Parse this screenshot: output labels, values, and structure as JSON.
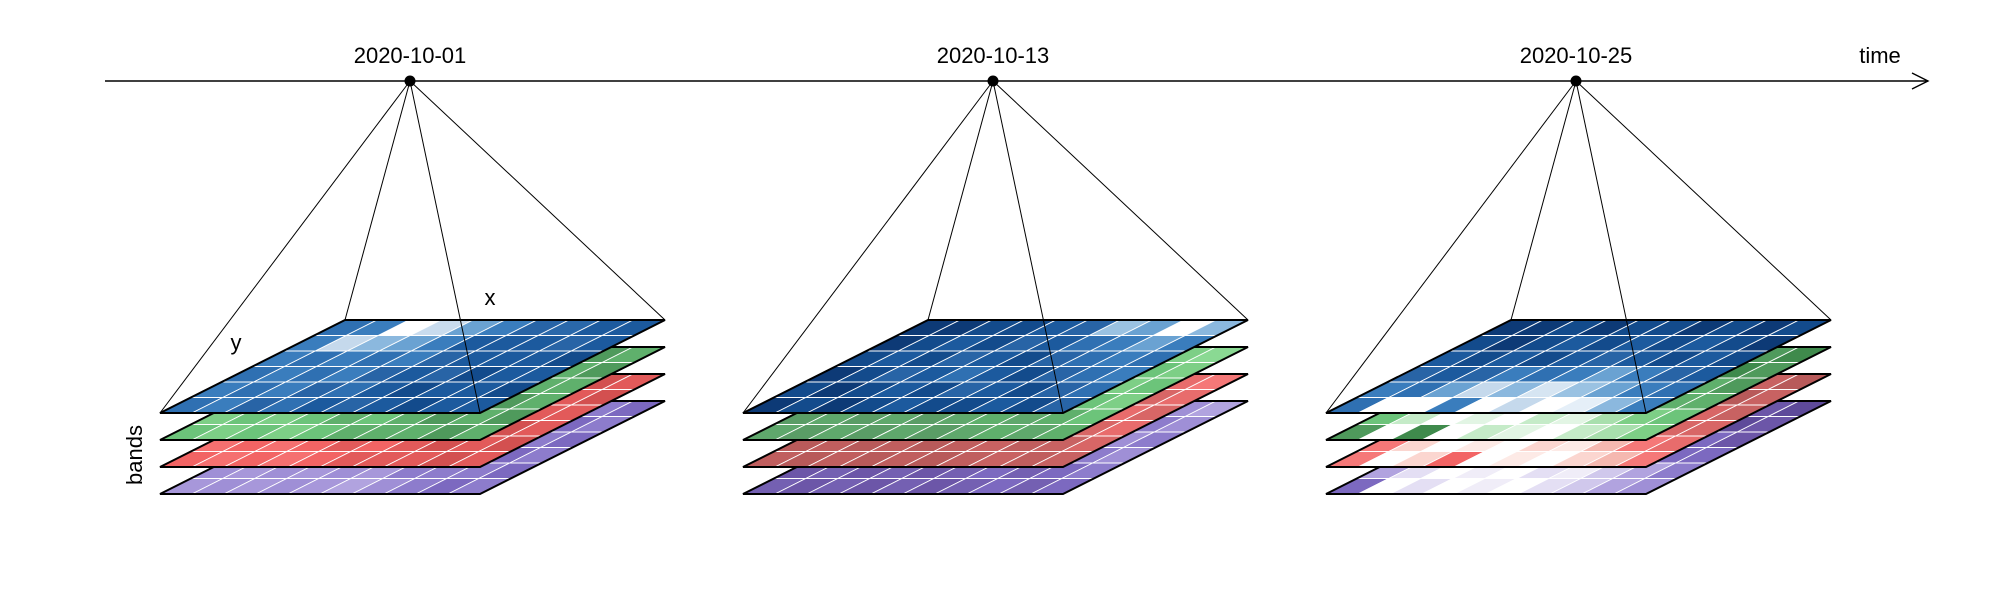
{
  "axis": {
    "label": "time"
  },
  "dimension_labels": {
    "x": "x",
    "y": "y",
    "bands": "bands"
  },
  "colors": {
    "line": "#000000",
    "grid": "#ffffff"
  },
  "timesteps": [
    {
      "date": "2020-10-01",
      "layers": [
        {
          "band": "blue",
          "cells": [
            "#2f70b2",
            "#3a7dbd",
            "#ffffff",
            "#c9dcee",
            "#6aa2d2",
            "#3a7dbd",
            "#2864a6",
            "#2a68aa",
            "#1c5a9e",
            "#1c5a9e",
            "#3a7dbd",
            "#c5d9ec",
            "#8bb8de",
            "#6aa2d2",
            "#3a7dbd",
            "#1c5a9e",
            "#1c5a9e",
            "#1c5a9e",
            "#2864a6",
            "#1c5a9e",
            "#3a7dbd",
            "#2f70b2",
            "#3a7dbd",
            "#2f70b2",
            "#3a7dbd",
            "#2864a6",
            "#1c5a9e",
            "#1c5a9e",
            "#1c5a9e",
            "#134b8c",
            "#2f70b2",
            "#3a7dbd",
            "#2f70b2",
            "#3a7dbd",
            "#2864a6",
            "#1c5a9e",
            "#2864a6",
            "#134b8c",
            "#1c5a9e",
            "#1c5a9e",
            "#3a7dbd",
            "#2f70b2",
            "#3a7dbd",
            "#2864a6",
            "#2f70b2",
            "#1c5a9e",
            "#134b8c",
            "#1c5a9e",
            "#1c5a9e",
            "#134b8c",
            "#2f70b2",
            "#3a7dbd",
            "#2864a6",
            "#2f70b2",
            "#1c5a9e",
            "#2864a6",
            "#1c5a9e",
            "#134b8c",
            "#1c5a9e",
            "#1c5a9e"
          ]
        },
        {
          "band": "green",
          "cells": [
            "#7dcf86",
            "#6cc47a",
            "#7dcf86",
            "#6cc47a",
            "#7dcf86",
            "#6cc47a",
            "#5fb06c",
            "#5fb06c",
            "#4f9a5c",
            "#5fb06c",
            "#6cc47a",
            "#7dcf86",
            "#6cc47a",
            "#7dcf86",
            "#6cc47a",
            "#5fb06c",
            "#4f9a5c",
            "#5fb06c",
            "#5fb06c",
            "#4f9a5c",
            "#7dcf86",
            "#6cc47a",
            "#7dcf86",
            "#6cc47a",
            "#5fb06c",
            "#6cc47a",
            "#5fb06c",
            "#4f9a5c",
            "#5fb06c",
            "#5fb06c",
            "#6cc47a",
            "#7dcf86",
            "#6cc47a",
            "#7dcf86",
            "#6cc47a",
            "#5fb06c",
            "#5fb06c",
            "#5fb06c",
            "#4f9a5c",
            "#5fb06c",
            "#7dcf86",
            "#6cc47a",
            "#7dcf86",
            "#6cc47a",
            "#5fb06c",
            "#6cc47a",
            "#5fb06c",
            "#4f9a5c",
            "#5fb06c",
            "#4f9a5c",
            "#6cc47a",
            "#7dcf86",
            "#6cc47a",
            "#7dcf86",
            "#6cc47a",
            "#5fb06c",
            "#5fb06c",
            "#5fb06c",
            "#4f9a5c",
            "#5fb06c"
          ]
        },
        {
          "band": "red",
          "cells": [
            "#f57070",
            "#f26464",
            "#f57070",
            "#f26464",
            "#f57070",
            "#f26464",
            "#e25a5a",
            "#e25a5a",
            "#d35050",
            "#e25a5a",
            "#f26464",
            "#f57070",
            "#f26464",
            "#f57070",
            "#f26464",
            "#e25a5a",
            "#d35050",
            "#e25a5a",
            "#e25a5a",
            "#d35050",
            "#f57070",
            "#f26464",
            "#f57070",
            "#f26464",
            "#e25a5a",
            "#f57070",
            "#e25a5a",
            "#d35050",
            "#e25a5a",
            "#e25a5a",
            "#f26464",
            "#f57070",
            "#f26464",
            "#f57070",
            "#f26464",
            "#e25a5a",
            "#e25a5a",
            "#e25a5a",
            "#d35050",
            "#e25a5a",
            "#f57070",
            "#f26464",
            "#f57070",
            "#f26464",
            "#e25a5a",
            "#f26464",
            "#e25a5a",
            "#d35050",
            "#e25a5a",
            "#d35050",
            "#f26464",
            "#f57070",
            "#f26464",
            "#f57070",
            "#f26464",
            "#e25a5a",
            "#e25a5a",
            "#e25a5a",
            "#d35050",
            "#e25a5a"
          ]
        },
        {
          "band": "purple",
          "cells": [
            "#9f8fd6",
            "#a797da",
            "#9f8fd6",
            "#a797da",
            "#9f8fd6",
            "#8d7ccc",
            "#8d7ccc",
            "#7c69c0",
            "#8d7ccc",
            "#7c69c0",
            "#a797da",
            "#9f8fd6",
            "#b1a3df",
            "#9f8fd6",
            "#a797da",
            "#9f8fd6",
            "#8d7ccc",
            "#8d7ccc",
            "#7c69c0",
            "#8d7ccc",
            "#9f8fd6",
            "#a797da",
            "#9f8fd6",
            "#a797da",
            "#9f8fd6",
            "#a797da",
            "#8d7ccc",
            "#7c69c0",
            "#8d7ccc",
            "#7c69c0",
            "#a797da",
            "#9f8fd6",
            "#a797da",
            "#b1a3df",
            "#9f8fd6",
            "#8d7ccc",
            "#9f8fd6",
            "#8d7ccc",
            "#7c69c0",
            "#8d7ccc",
            "#9f8fd6",
            "#a797da",
            "#9f8fd6",
            "#a797da",
            "#9f8fd6",
            "#a797da",
            "#8d7ccc",
            "#8d7ccc",
            "#8d7ccc",
            "#7c69c0",
            "#a797da",
            "#9f8fd6",
            "#a797da",
            "#9f8fd6",
            "#a797da",
            "#b1a3df",
            "#9f8fd6",
            "#8d7ccc",
            "#7c69c0",
            "#8d7ccc"
          ]
        }
      ]
    },
    {
      "date": "2020-10-13",
      "layers": [
        {
          "band": "blue",
          "cells": [
            "#0d3a76",
            "#0d3a76",
            "#134b8c",
            "#134b8c",
            "#1c5a9e",
            "#2864a6",
            "#9ac2e2",
            "#6aa2d2",
            "#ffffff",
            "#8bb8de",
            "#0d3a76",
            "#134b8c",
            "#1c5a9e",
            "#134b8c",
            "#2864a6",
            "#1c5a9e",
            "#2f70b2",
            "#3a7dbd",
            "#6aa2d2",
            "#3a7dbd",
            "#134b8c",
            "#1c5a9e",
            "#134b8c",
            "#2864a6",
            "#1c5a9e",
            "#134b8c",
            "#2864a6",
            "#2f70b2",
            "#3a7dbd",
            "#2f70b2",
            "#0d3a76",
            "#134b8c",
            "#2864a6",
            "#1c5a9e",
            "#2f70b2",
            "#1c5a9e",
            "#134b8c",
            "#2864a6",
            "#2f70b2",
            "#3a7dbd",
            "#134b8c",
            "#0d3a76",
            "#134b8c",
            "#1c5a9e",
            "#134b8c",
            "#2864a6",
            "#1c5a9e",
            "#134b8c",
            "#2864a6",
            "#2f70b2",
            "#0d3a76",
            "#134b8c",
            "#0d3a76",
            "#134b8c",
            "#1c5a9e",
            "#134b8c",
            "#134b8c",
            "#1c5a9e",
            "#134b8c",
            "#2864a6"
          ]
        },
        {
          "band": "green",
          "cells": [
            "#5a9d66",
            "#5fa86c",
            "#5a9d66",
            "#5fa86c",
            "#5fb06c",
            "#6cc47a",
            "#7dcf86",
            "#8ad993",
            "#7dcf86",
            "#8ad993",
            "#5fa86c",
            "#5a9d66",
            "#5fa86c",
            "#5fb06c",
            "#5a9d66",
            "#5fb06c",
            "#6cc47a",
            "#7dcf86",
            "#6cc47a",
            "#7dcf86",
            "#5a9d66",
            "#5fa86c",
            "#5a9d66",
            "#5fa86c",
            "#5fb06c",
            "#5fa86c",
            "#5fb06c",
            "#6cc47a",
            "#7dcf86",
            "#6cc47a",
            "#5fa86c",
            "#5a9d66",
            "#5fa86c",
            "#5a9d66",
            "#5fa86c",
            "#5fb06c",
            "#5fa86c",
            "#5fb06c",
            "#6cc47a",
            "#7dcf86",
            "#5a9d66",
            "#5fa86c",
            "#5a9d66",
            "#5fa86c",
            "#5a9d66",
            "#5fa86c",
            "#5fb06c",
            "#5fa86c",
            "#5fb06c",
            "#6cc47a",
            "#5fa86c",
            "#5a9d66",
            "#5fa86c",
            "#5a9d66",
            "#5fa86c",
            "#5a9d66",
            "#5fa86c",
            "#5fb06c",
            "#5fa86c",
            "#5fb06c"
          ]
        },
        {
          "band": "red",
          "cells": [
            "#b85a5a",
            "#c05e5e",
            "#b85a5a",
            "#c05e5e",
            "#c86262",
            "#d86666",
            "#e86c6c",
            "#f57878",
            "#e86c6c",
            "#f57878",
            "#c05e5e",
            "#b85a5a",
            "#c05e5e",
            "#c86262",
            "#b85a5a",
            "#c86262",
            "#d86666",
            "#e86c6c",
            "#d86666",
            "#e86c6c",
            "#b85a5a",
            "#c05e5e",
            "#b85a5a",
            "#c05e5e",
            "#c86262",
            "#c05e5e",
            "#c86262",
            "#d86666",
            "#e86c6c",
            "#d86666",
            "#c05e5e",
            "#b85a5a",
            "#c05e5e",
            "#b85a5a",
            "#c05e5e",
            "#c86262",
            "#c05e5e",
            "#c86262",
            "#d86666",
            "#e86c6c",
            "#b85a5a",
            "#c05e5e",
            "#b85a5a",
            "#c05e5e",
            "#b85a5a",
            "#c05e5e",
            "#c86262",
            "#c05e5e",
            "#c86262",
            "#d86666",
            "#c05e5e",
            "#b85a5a",
            "#c05e5e",
            "#b85a5a",
            "#c05e5e",
            "#b85a5a",
            "#c05e5e",
            "#c86262",
            "#c05e5e",
            "#c86262"
          ]
        },
        {
          "band": "purple",
          "cells": [
            "#6c56a8",
            "#7460b2",
            "#6c56a8",
            "#7460b2",
            "#7c69c0",
            "#8d7ccc",
            "#9f8fd6",
            "#b1a3df",
            "#9f8fd6",
            "#b1a3df",
            "#7460b2",
            "#6c56a8",
            "#7460b2",
            "#7c69c0",
            "#6c56a8",
            "#7c69c0",
            "#8d7ccc",
            "#9f8fd6",
            "#8d7ccc",
            "#9f8fd6",
            "#6c56a8",
            "#7460b2",
            "#6c56a8",
            "#7460b2",
            "#7c69c0",
            "#7460b2",
            "#7c69c0",
            "#8d7ccc",
            "#9f8fd6",
            "#8d7ccc",
            "#7460b2",
            "#6c56a8",
            "#7460b2",
            "#6c56a8",
            "#7460b2",
            "#7c69c0",
            "#7460b2",
            "#7c69c0",
            "#8d7ccc",
            "#9f8fd6",
            "#6c56a8",
            "#7460b2",
            "#6c56a8",
            "#7460b2",
            "#6c56a8",
            "#7460b2",
            "#7c69c0",
            "#7460b2",
            "#7c69c0",
            "#8d7ccc",
            "#7460b2",
            "#6c56a8",
            "#7460b2",
            "#6c56a8",
            "#7460b2",
            "#6c56a8",
            "#7460b2",
            "#7c69c0",
            "#7460b2",
            "#7c69c0"
          ]
        }
      ]
    },
    {
      "date": "2020-10-25",
      "layers": [
        {
          "band": "blue",
          "cells": [
            "#0d3a76",
            "#0d3a76",
            "#134b8c",
            "#0d3a76",
            "#134b8c",
            "#134b8c",
            "#0d3a76",
            "#134b8c",
            "#0d3a76",
            "#134b8c",
            "#134b8c",
            "#0d3a76",
            "#134b8c",
            "#1c5a9e",
            "#134b8c",
            "#1c5a9e",
            "#134b8c",
            "#1c5a9e",
            "#134b8c",
            "#0d3a76",
            "#1c5a9e",
            "#134b8c",
            "#1c5a9e",
            "#134b8c",
            "#1c5a9e",
            "#2864a6",
            "#1c5a9e",
            "#134b8c",
            "#1c5a9e",
            "#134b8c",
            "#2864a6",
            "#1c5a9e",
            "#2864a6",
            "#3a7dbd",
            "#2f70b2",
            "#3a7dbd",
            "#6aa2d2",
            "#3a7dbd",
            "#2864a6",
            "#1c5a9e",
            "#3a7dbd",
            "#2f70b2",
            "#6aa2d2",
            "#c5d9ec",
            "#8bb8de",
            "#d6e5f2",
            "#9ac2e2",
            "#6aa2d2",
            "#3a7dbd",
            "#2f70b2",
            "#2f70b2",
            "#ffffff",
            "#ffffff",
            "#3a7dbd",
            "#ffffff",
            "#c5d9ec",
            "#ffffff",
            "#e5eff8",
            "#8bb8de",
            "#3a7dbd"
          ]
        },
        {
          "band": "green",
          "cells": [
            "#4f9a5c",
            "#3f8a4c",
            "#4f9a5c",
            "#3f8a4c",
            "#4f9a5c",
            "#3f8a4c",
            "#4f9a5c",
            "#3f8a4c",
            "#4f9a5c",
            "#3f8a4c",
            "#5fb06c",
            "#4f9a5c",
            "#5fb06c",
            "#4f9a5c",
            "#5fb06c",
            "#4f9a5c",
            "#5fb06c",
            "#4f9a5c",
            "#3f8a4c",
            "#4f9a5c",
            "#7dcf86",
            "#5fb06c",
            "#6cc47a",
            "#5fb06c",
            "#7dcf86",
            "#6cc47a",
            "#5fb06c",
            "#4f9a5c",
            "#5fb06c",
            "#4f9a5c",
            "#5fb06c",
            "#a8dfad",
            "#7dcf86",
            "#c5ebc8",
            "#a8dfad",
            "#8ad993",
            "#7dcf86",
            "#6cc47a",
            "#5fb06c",
            "#5fb06c",
            "#6cc47a",
            "#c5ebc8",
            "#ffffff",
            "#e2f5e4",
            "#ffffff",
            "#c5ebc8",
            "#e2f5e4",
            "#a8dfad",
            "#7dcf86",
            "#6cc47a",
            "#4f9a5c",
            "#ffffff",
            "#3f8a4c",
            "#ffffff",
            "#c5ebc8",
            "#e2f5e4",
            "#ffffff",
            "#c5ebc8",
            "#a8dfad",
            "#7dcf86"
          ]
        },
        {
          "band": "red",
          "cells": [
            "#c86262",
            "#b85a5a",
            "#c86262",
            "#b85a5a",
            "#c86262",
            "#b85a5a",
            "#c86262",
            "#b85a5a",
            "#c86262",
            "#b85a5a",
            "#d86666",
            "#c86262",
            "#d86666",
            "#c86262",
            "#d86666",
            "#c86262",
            "#d86666",
            "#c86262",
            "#b85a5a",
            "#c86262",
            "#f26464",
            "#e86c6c",
            "#f26464",
            "#e86c6c",
            "#f57878",
            "#e86c6c",
            "#d86666",
            "#c86262",
            "#d86666",
            "#c86262",
            "#e86c6c",
            "#f5b8b0",
            "#f57878",
            "#fbd6d0",
            "#f5b8b0",
            "#f5a8a0",
            "#f57878",
            "#e86c6c",
            "#d86666",
            "#d86666",
            "#f57878",
            "#fbd6d0",
            "#ffffff",
            "#fdeae6",
            "#ffffff",
            "#fbd6d0",
            "#fdeae6",
            "#f5b8b0",
            "#f57878",
            "#e86c6c",
            "#f57878",
            "#ffffff",
            "#fbd6d0",
            "#f26464",
            "#ffffff",
            "#fdeae6",
            "#ffffff",
            "#fbd6d0",
            "#f5b8b0",
            "#f57878"
          ]
        },
        {
          "band": "purple",
          "cells": [
            "#6c56a8",
            "#5e4a9a",
            "#6c56a8",
            "#5e4a9a",
            "#6c56a8",
            "#5e4a9a",
            "#6c56a8",
            "#5e4a9a",
            "#6c56a8",
            "#5e4a9a",
            "#7c69c0",
            "#6c56a8",
            "#7c69c0",
            "#6c56a8",
            "#7c69c0",
            "#6c56a8",
            "#7c69c0",
            "#6c56a8",
            "#5e4a9a",
            "#6c56a8",
            "#9f8fd6",
            "#8d7ccc",
            "#9f8fd6",
            "#8d7ccc",
            "#b1a3df",
            "#8d7ccc",
            "#7c69c0",
            "#6c56a8",
            "#7c69c0",
            "#6c56a8",
            "#8d7ccc",
            "#d0c8ec",
            "#b1a3df",
            "#e4dff4",
            "#d0c8ec",
            "#c4baea",
            "#b1a3df",
            "#8d7ccc",
            "#7c69c0",
            "#7c69c0",
            "#b1a3df",
            "#e4dff4",
            "#ffffff",
            "#f0edf8",
            "#ffffff",
            "#e4dff4",
            "#f0edf8",
            "#d0c8ec",
            "#b1a3df",
            "#8d7ccc",
            "#7c69c0",
            "#ffffff",
            "#e4dff4",
            "#ffffff",
            "#f0edf8",
            "#ffffff",
            "#e4dff4",
            "#d0c8ec",
            "#b1a3df",
            "#9f8fd6"
          ]
        }
      ]
    }
  ]
}
